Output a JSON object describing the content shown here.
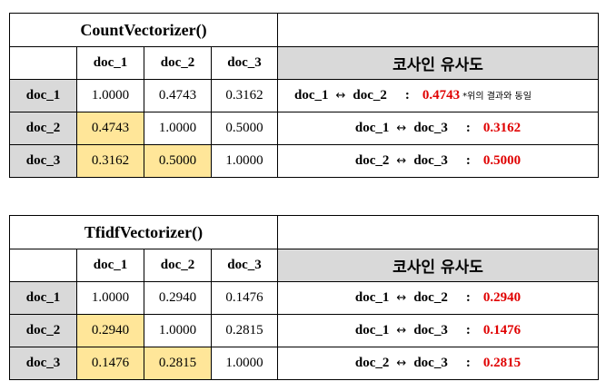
{
  "count": {
    "title": "CountVectorizer()",
    "cols": [
      "doc_1",
      "doc_2",
      "doc_3"
    ],
    "rows": [
      {
        "label": "doc_1",
        "values": [
          "1.0000",
          "0.4743",
          "0.3162"
        ]
      },
      {
        "label": "doc_2",
        "values": [
          "0.4743",
          "1.0000",
          "0.5000"
        ]
      },
      {
        "label": "doc_3",
        "values": [
          "0.3162",
          "0.5000",
          "1.0000"
        ]
      }
    ],
    "sim_header": "코사인 유사도",
    "sims": [
      {
        "a": "doc_1",
        "arrow": "↔",
        "b": "doc_2",
        "colon": ":",
        "value": "0.4743",
        "note": "*위의 결과와 동일"
      },
      {
        "a": "doc_1",
        "arrow": "↔",
        "b": "doc_3",
        "colon": ":",
        "value": "0.3162"
      },
      {
        "a": "doc_2",
        "arrow": "↔",
        "b": "doc_3",
        "colon": ":",
        "value": "0.5000"
      }
    ]
  },
  "tfidf": {
    "title": "TfidfVectorizer()",
    "cols": [
      "doc_1",
      "doc_2",
      "doc_3"
    ],
    "rows": [
      {
        "label": "doc_1",
        "values": [
          "1.0000",
          "0.2940",
          "0.1476"
        ]
      },
      {
        "label": "doc_2",
        "values": [
          "0.2940",
          "1.0000",
          "0.2815"
        ]
      },
      {
        "label": "doc_3",
        "values": [
          "0.1476",
          "0.2815",
          "1.0000"
        ]
      }
    ],
    "sim_header": "코사인 유사도",
    "sims": [
      {
        "a": "doc_1",
        "arrow": "↔",
        "b": "doc_2",
        "colon": ":",
        "value": "0.2940"
      },
      {
        "a": "doc_1",
        "arrow": "↔",
        "b": "doc_3",
        "colon": ":",
        "value": "0.1476"
      },
      {
        "a": "doc_2",
        "arrow": "↔",
        "b": "doc_3",
        "colon": ":",
        "value": "0.2815"
      }
    ]
  }
}
